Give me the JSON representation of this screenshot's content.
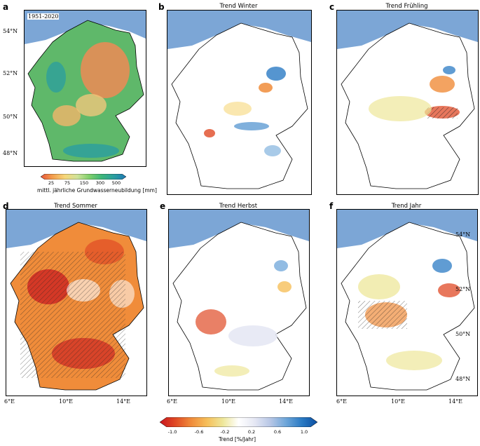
{
  "panels": {
    "a": {
      "letter": "a",
      "title": "",
      "period": "1951-2020"
    },
    "b": {
      "letter": "b",
      "title": "Trend Winter"
    },
    "c": {
      "letter": "c",
      "title": "Trend Frühling"
    },
    "d": {
      "letter": "d",
      "title": "Trend Sommer"
    },
    "e": {
      "letter": "e",
      "title": "Trend Herbst"
    },
    "f": {
      "letter": "f",
      "title": "Trend Jahr"
    }
  },
  "lat_ticks_a": [
    "54°N",
    "52°N",
    "50°N",
    "48°N"
  ],
  "lat_ticks_f": [
    "54°N",
    "52°N",
    "50°N",
    "48°N"
  ],
  "lon_ticks": [
    "6°E",
    "10°E",
    "14°E"
  ],
  "colorbar_recharge": {
    "ticks": [
      "25",
      "75",
      "150",
      "300",
      "500"
    ],
    "label": "mittl. jährliche Grundwasserneubildung [mm]",
    "colors": [
      "#e8553a",
      "#f3a04e",
      "#f6d77a",
      "#cfe39a",
      "#7fd06b",
      "#3cb67a",
      "#2a9ea0",
      "#1f78b4"
    ]
  },
  "colorbar_trend": {
    "ticks": [
      "-1.0",
      "-0.6",
      "-0.2",
      "0.2",
      "0.6",
      "1.0"
    ],
    "label": "Trend [%/Jahr]",
    "colors": [
      "#c8141e",
      "#e04a25",
      "#f08c3a",
      "#f6bf5a",
      "#eee79a",
      "#ffffff",
      "#e6e8f4",
      "#b8c7e6",
      "#6ea6d9",
      "#2b7bc4",
      "#0b4ea1"
    ]
  },
  "colors": {
    "sea": "#7ca6d6",
    "border": "#000000"
  }
}
